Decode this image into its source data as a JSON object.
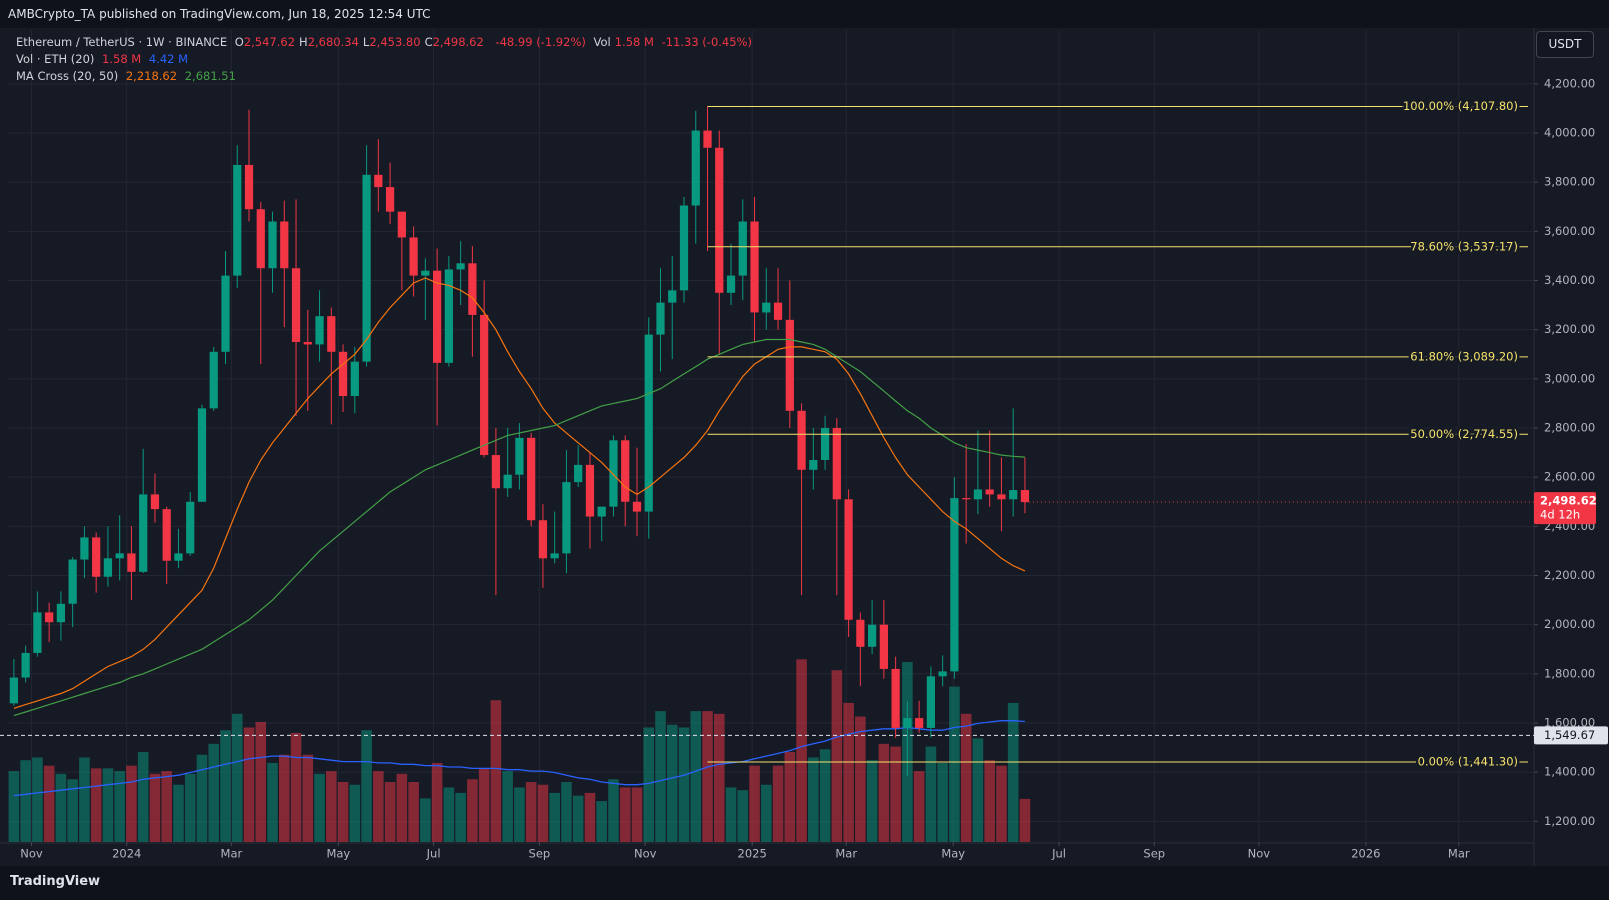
{
  "header": {
    "publisher": "AMBCrypto_TA published on TradingView.com, Jun 18, 2025 12:54 UTC",
    "brand": "TradingView"
  },
  "chart_data": {
    "type": "candlestick",
    "title": "Ethereum / TetherUS · 1W · BINANCE",
    "currency": "USDT",
    "legend": {
      "ohlc": [
        {
          "key": "O",
          "value": "2,547.62"
        },
        {
          "key": "H",
          "value": "2,680.34"
        },
        {
          "key": "L",
          "value": "2,453.80"
        },
        {
          "key": "C",
          "value": "2,498.62"
        }
      ],
      "change": "-48.99 (-1.92%)",
      "vol_key": "Vol",
      "vol_value": "1.58 M",
      "vol_change": "-11.33 (-0.45%)",
      "volume_indicator": "Vol · ETH (20)",
      "volume_indicator_values": [
        "1.58 M",
        "4.42 M"
      ],
      "ma_indicator": "MA Cross (20, 50)",
      "ma_indicator_values": [
        "2,218.62",
        "2,681.51"
      ]
    },
    "up_color": "#089981",
    "down_color": "#f23645",
    "open": [
      1680,
      1785,
      1885,
      2050,
      2010,
      2085,
      2265,
      2355,
      2195,
      2270,
      2290,
      2215,
      2530,
      2470,
      2260,
      2290,
      2500,
      2880,
      3110,
      3420,
      3870,
      3690,
      3450,
      3640,
      3450,
      3150,
      3140,
      3255,
      3110,
      2930,
      3070,
      3830,
      3780,
      3680,
      3575,
      3420,
      3440,
      3065,
      3445,
      3470,
      3260,
      2690,
      2555,
      2610,
      2760,
      2425,
      2270,
      2290,
      2580,
      2650,
      2440,
      2480,
      2750,
      2500,
      2460,
      3180,
      3310,
      3360,
      3705,
      4010,
      3940,
      3350,
      3420,
      3640,
      3270,
      3310,
      3240,
      2870,
      2630,
      2670,
      2800,
      2510,
      2020,
      1910,
      2000,
      1820,
      1580,
      1620,
      1580,
      1790,
      1810,
      2515,
      2510,
      2550,
      2530,
      2510,
      2547.62
    ],
    "high": [
      1860,
      1915,
      2135,
      2090,
      2135,
      2275,
      2400,
      2375,
      2400,
      2445,
      2400,
      2715,
      2615,
      2480,
      2390,
      2540,
      2895,
      3130,
      3520,
      3950,
      4095,
      3720,
      3680,
      3725,
      3730,
      3280,
      3360,
      3290,
      3140,
      3130,
      3950,
      3975,
      3880,
      3680,
      3620,
      3490,
      3530,
      3500,
      3560,
      3540,
      3400,
      2800,
      2800,
      2820,
      2780,
      2490,
      2460,
      2710,
      2730,
      2700,
      2480,
      2770,
      2770,
      2720,
      3250,
      3450,
      3500,
      3740,
      4090,
      4107.8,
      4010,
      3550,
      3730,
      3740,
      3450,
      3450,
      3400,
      2900,
      2800,
      2850,
      2840,
      2550,
      2050,
      2100,
      2100,
      1870,
      1690,
      1690,
      1830,
      1875,
      2600,
      2735,
      2790,
      2790,
      2680,
      2880,
      2680.34
    ],
    "low": [
      1670,
      1765,
      1870,
      1930,
      1935,
      1990,
      2190,
      2130,
      2155,
      2180,
      2100,
      2210,
      2415,
      2165,
      2230,
      2280,
      2500,
      2870,
      3060,
      3370,
      3640,
      3060,
      3350,
      3210,
      2850,
      2870,
      3070,
      2815,
      2865,
      2860,
      3050,
      3680,
      3630,
      3360,
      3335,
      3240,
      2810,
      3050,
      3300,
      3090,
      2680,
      2120,
      2520,
      2550,
      2400,
      2150,
      2250,
      2210,
      2560,
      2310,
      2340,
      2440,
      2400,
      2360,
      2350,
      3030,
      3080,
      3310,
      3550,
      3520,
      3100,
      3300,
      3320,
      3150,
      3200,
      3200,
      2800,
      2120,
      2550,
      2630,
      2120,
      1950,
      1750,
      1880,
      1780,
      1540,
      1385,
      1560,
      1540,
      1750,
      1780,
      2330,
      2450,
      2480,
      2380,
      2440,
      2453.8
    ],
    "close": [
      1785,
      1885,
      2050,
      2010,
      2085,
      2265,
      2355,
      2195,
      2270,
      2290,
      2215,
      2530,
      2470,
      2260,
      2290,
      2500,
      2880,
      3110,
      3420,
      3870,
      3690,
      3450,
      3640,
      3450,
      3150,
      3140,
      3255,
      3110,
      2930,
      3070,
      3830,
      3780,
      3680,
      3575,
      3420,
      3440,
      3065,
      3445,
      3470,
      3260,
      2690,
      2555,
      2610,
      2760,
      2425,
      2270,
      2290,
      2580,
      2650,
      2440,
      2480,
      2750,
      2500,
      2460,
      3180,
      3310,
      3360,
      3705,
      4010,
      3940,
      3350,
      3420,
      3640,
      3270,
      3310,
      3240,
      2870,
      2630,
      2670,
      2800,
      2510,
      2020,
      1910,
      2000,
      1820,
      1580,
      1620,
      1580,
      1790,
      1810,
      2515,
      2510,
      2550,
      2530,
      2510,
      2547.62,
      2498.62
    ],
    "volume": [
      2.6,
      3.0,
      3.1,
      2.8,
      2.5,
      2.3,
      3.1,
      2.7,
      2.7,
      2.6,
      2.8,
      3.3,
      2.5,
      2.6,
      2.1,
      2.5,
      3.2,
      3.6,
      4.1,
      4.7,
      4.2,
      4.4,
      2.9,
      3.2,
      4.0,
      3.2,
      2.5,
      2.6,
      2.2,
      2.1,
      4.1,
      2.6,
      2.2,
      2.5,
      2.2,
      1.6,
      2.9,
      2.0,
      1.8,
      2.3,
      2.7,
      5.2,
      2.6,
      2.0,
      2.2,
      2.1,
      1.8,
      2.2,
      1.7,
      1.8,
      1.5,
      2.3,
      2.0,
      2.0,
      4.2,
      4.8,
      4.3,
      4.2,
      4.8,
      4.8,
      4.7,
      2.0,
      1.9,
      2.8,
      2.1,
      2.8,
      3.3,
      6.7,
      3.1,
      3.4,
      6.3,
      5.1,
      4.6,
      3.0,
      3.6,
      3.5,
      6.6,
      2.6,
      3.5,
      2.9,
      5.7,
      4.7,
      3.8,
      3.0,
      2.8,
      5.1,
      1.58
    ],
    "ma20": {
      "color": "#f7740f",
      "values": [
        1660,
        1675,
        1690,
        1705,
        1720,
        1740,
        1770,
        1800,
        1830,
        1850,
        1870,
        1900,
        1940,
        1990,
        2040,
        2090,
        2140,
        2230,
        2350,
        2470,
        2580,
        2670,
        2740,
        2800,
        2860,
        2920,
        2970,
        3020,
        3060,
        3100,
        3160,
        3230,
        3290,
        3340,
        3390,
        3410,
        3390,
        3380,
        3360,
        3330,
        3270,
        3200,
        3110,
        3030,
        2960,
        2880,
        2820,
        2780,
        2740,
        2700,
        2660,
        2610,
        2560,
        2530,
        2560,
        2600,
        2640,
        2680,
        2730,
        2790,
        2870,
        2940,
        3010,
        3060,
        3090,
        3120,
        3130,
        3130,
        3120,
        3110,
        3080,
        3020,
        2940,
        2850,
        2760,
        2680,
        2610,
        2560,
        2510,
        2460,
        2420,
        2390,
        2350,
        2310,
        2270,
        2240,
        2218.62
      ]
    },
    "ma50": {
      "color": "#43a047",
      "values": [
        1630,
        1645,
        1660,
        1675,
        1690,
        1705,
        1720,
        1735,
        1750,
        1765,
        1785,
        1800,
        1820,
        1840,
        1860,
        1880,
        1900,
        1930,
        1960,
        1990,
        2020,
        2060,
        2100,
        2150,
        2200,
        2250,
        2300,
        2340,
        2380,
        2420,
        2460,
        2500,
        2540,
        2570,
        2600,
        2630,
        2650,
        2670,
        2690,
        2710,
        2730,
        2750,
        2770,
        2780,
        2790,
        2800,
        2810,
        2830,
        2850,
        2870,
        2890,
        2900,
        2910,
        2920,
        2940,
        2960,
        2990,
        3020,
        3050,
        3080,
        3100,
        3120,
        3140,
        3150,
        3160,
        3160,
        3160,
        3150,
        3140,
        3120,
        3090,
        3060,
        3030,
        2990,
        2950,
        2910,
        2870,
        2840,
        2800,
        2770,
        2740,
        2720,
        2710,
        2700,
        2690,
        2685,
        2681.51
      ]
    },
    "volume_ma": {
      "color": "#2962ff",
      "values": [
        1.7,
        1.75,
        1.8,
        1.85,
        1.9,
        1.95,
        2.0,
        2.05,
        2.1,
        2.15,
        2.2,
        2.3,
        2.35,
        2.4,
        2.45,
        2.55,
        2.65,
        2.75,
        2.85,
        2.95,
        3.05,
        3.1,
        3.15,
        3.15,
        3.1,
        3.1,
        3.05,
        3.0,
        2.95,
        2.95,
        2.95,
        2.9,
        2.9,
        2.85,
        2.85,
        2.8,
        2.8,
        2.75,
        2.75,
        2.7,
        2.7,
        2.7,
        2.65,
        2.65,
        2.6,
        2.6,
        2.55,
        2.45,
        2.35,
        2.3,
        2.2,
        2.15,
        2.1,
        2.1,
        2.15,
        2.25,
        2.35,
        2.45,
        2.6,
        2.75,
        2.85,
        2.9,
        2.95,
        3.05,
        3.15,
        3.25,
        3.35,
        3.5,
        3.6,
        3.7,
        3.85,
        3.95,
        4.05,
        4.1,
        4.15,
        4.15,
        4.2,
        4.15,
        4.1,
        4.1,
        4.2,
        4.25,
        4.35,
        4.4,
        4.45,
        4.45,
        4.42
      ]
    },
    "fib": {
      "color": "#f5e26b",
      "levels": [
        {
          "value": 4107.8,
          "label": "100.00% (4,107.80)"
        },
        {
          "value": 3537.17,
          "label": "78.60% (3,537.17)"
        },
        {
          "value": 3089.2,
          "label": "61.80% (3,089.20)"
        },
        {
          "value": 2774.55,
          "label": "50.00% (2,774.55)"
        },
        {
          "value": 1441.3,
          "label": "0.00% (1,441.30)"
        }
      ]
    },
    "price_line": {
      "value": 1549.67,
      "label": "1,549.67"
    },
    "last_price": {
      "value": 2498.62,
      "label": "2,498.62",
      "countdown": "4d 12h"
    },
    "xlim": [
      -0.5,
      129.3
    ],
    "xticks": [
      {
        "value": 1.5,
        "label": "Nov"
      },
      {
        "value": 9.6,
        "label": "2024"
      },
      {
        "value": 18.5,
        "label": "Mar"
      },
      {
        "value": 27.6,
        "label": "May"
      },
      {
        "value": 35.7,
        "label": "Jul"
      },
      {
        "value": 44.7,
        "label": "Sep"
      },
      {
        "value": 53.7,
        "label": "Nov"
      },
      {
        "value": 62.8,
        "label": "2025"
      },
      {
        "value": 70.8,
        "label": "Mar"
      },
      {
        "value": 79.9,
        "label": "May"
      },
      {
        "value": 88.9,
        "label": "Jul"
      },
      {
        "value": 97,
        "label": "Sep"
      },
      {
        "value": 105.9,
        "label": "Nov"
      },
      {
        "value": 115,
        "label": "2026"
      },
      {
        "value": 122.9,
        "label": "Mar"
      }
    ],
    "ylim": [
      1116,
      4419
    ],
    "yticks": [
      {
        "value": 1200,
        "label": "1,200.00"
      },
      {
        "value": 1400,
        "label": "1,400.00"
      },
      {
        "value": 1600,
        "label": "1,600.00"
      },
      {
        "value": 1800,
        "label": "1,800.00"
      },
      {
        "value": 2000,
        "label": "2,000.00"
      },
      {
        "value": 2200,
        "label": "2,200.00"
      },
      {
        "value": 2400,
        "label": "2,400.00"
      },
      {
        "value": 2600,
        "label": "2,600.00"
      },
      {
        "value": 2800,
        "label": "2,800.00"
      },
      {
        "value": 3000,
        "label": "3,000.00"
      },
      {
        "value": 3200,
        "label": "3,200.00"
      },
      {
        "value": 3400,
        "label": "3,400.00"
      },
      {
        "value": 3600,
        "label": "3,600.00"
      },
      {
        "value": 3800,
        "label": "3,800.00"
      },
      {
        "value": 4000,
        "label": "4,000.00"
      },
      {
        "value": 4200,
        "label": "4,200.00"
      }
    ],
    "grid": true
  }
}
